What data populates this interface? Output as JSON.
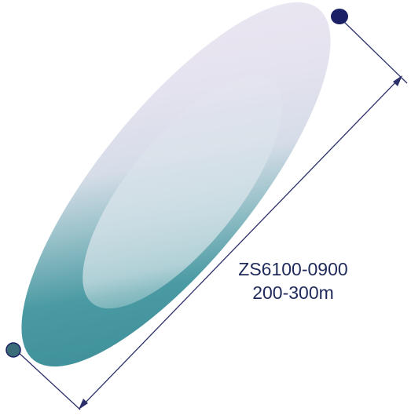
{
  "diagram": {
    "model": "ZS6100-0900",
    "range": "200-300m"
  },
  "colors": {
    "beam_teal": "#3c8f98",
    "beam_light": "#e7e4f0",
    "beam_core": "#cfdbe4",
    "dimension_line": "#2b2f6a",
    "sensor_dot": "#1a1f66",
    "text": "#1f2a5a"
  }
}
